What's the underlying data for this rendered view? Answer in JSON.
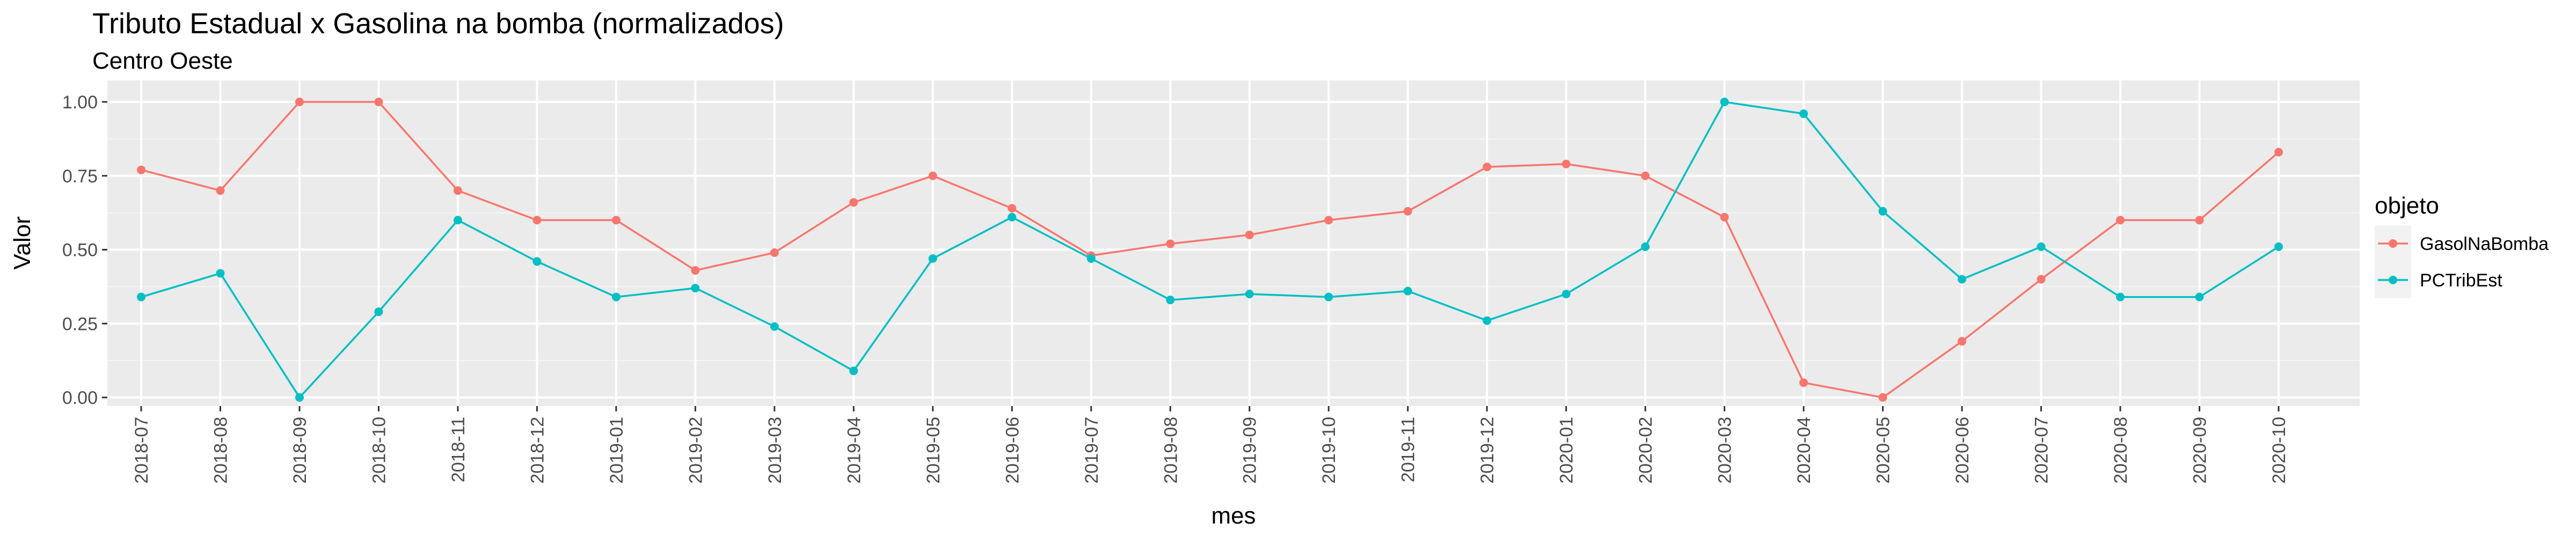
{
  "chart_data": {
    "type": "line",
    "title": "Tributo Estadual x Gasolina na bomba (normalizados)",
    "subtitle": "Centro Oeste",
    "xlabel": "mes",
    "ylabel": "Valor",
    "ylim": [
      0,
      1
    ],
    "yticks": [
      "0.00",
      "0.25",
      "0.50",
      "0.75",
      "1.00"
    ],
    "ytick_values": [
      0,
      0.25,
      0.5,
      0.75,
      1.0
    ],
    "categories": [
      "2018-07",
      "2018-08",
      "2018-09",
      "2018-10",
      "2018-11",
      "2018-12",
      "2019-01",
      "2019-02",
      "2019-03",
      "2019-04",
      "2019-05",
      "2019-06",
      "2019-07",
      "2019-08",
      "2019-09",
      "2019-10",
      "2019-11",
      "2019-12",
      "2020-01",
      "2020-02",
      "2020-03",
      "2020-04",
      "2020-05",
      "2020-06",
      "2020-07",
      "2020-08",
      "2020-09",
      "2020-10"
    ],
    "legend_title": "objeto",
    "legend_position": "right",
    "grid": true,
    "series": [
      {
        "name": "GasolNaBomba",
        "color": "#F8766D",
        "values": [
          0.77,
          0.7,
          1.0,
          1.0,
          0.7,
          0.6,
          0.6,
          0.43,
          0.49,
          0.66,
          0.75,
          0.64,
          0.48,
          0.52,
          0.55,
          0.6,
          0.63,
          0.78,
          0.79,
          0.75,
          0.61,
          0.05,
          0.0,
          0.19,
          0.4,
          0.6,
          0.6,
          0.83
        ]
      },
      {
        "name": "PCTribEst",
        "color": "#00BFC4",
        "values": [
          0.34,
          0.42,
          0.0,
          0.29,
          0.6,
          0.46,
          0.34,
          0.37,
          0.24,
          0.09,
          0.47,
          0.61,
          0.47,
          0.33,
          0.35,
          0.34,
          0.36,
          0.26,
          0.35,
          0.51,
          1.0,
          0.96,
          0.63,
          0.4,
          0.51,
          0.34,
          0.34,
          0.51
        ]
      }
    ]
  }
}
